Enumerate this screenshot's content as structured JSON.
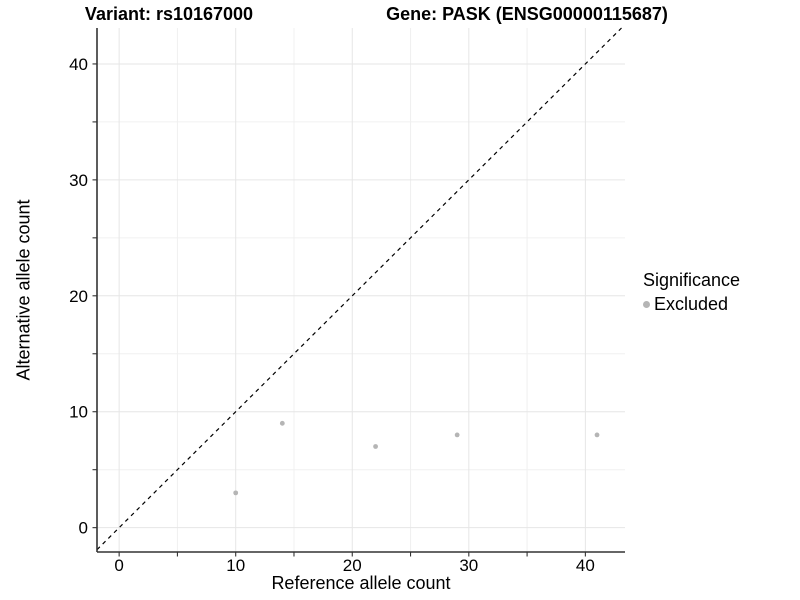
{
  "chart_data": {
    "type": "scatter",
    "title_left": "Variant: rs10167000",
    "title_right": "Gene: PASK (ENSG00000115687)",
    "xlabel": "Reference allele count",
    "ylabel": "Alternative allele count",
    "xlim": [
      -1.9,
      43.4
    ],
    "ylim": [
      -2.1,
      43.1
    ],
    "x_ticks_major": [
      0,
      10,
      20,
      30,
      40
    ],
    "x_ticks_minor": [
      5,
      15,
      25,
      35
    ],
    "y_ticks_major": [
      0,
      10,
      20,
      30,
      40
    ],
    "y_ticks_minor": [
      5,
      15,
      25,
      35
    ],
    "grid": "major+minor",
    "reference_line": {
      "type": "identity",
      "equation": "y = x",
      "style": "dashed",
      "color": "#000000"
    },
    "series": [
      {
        "name": "Excluded",
        "color": "#b5b5b5",
        "points": [
          {
            "x": 10,
            "y": 3
          },
          {
            "x": 14,
            "y": 9
          },
          {
            "x": 22,
            "y": 7
          },
          {
            "x": 29,
            "y": 8
          },
          {
            "x": 41,
            "y": 8
          }
        ]
      }
    ],
    "legend": {
      "title": "Significance",
      "position": "right",
      "items": [
        {
          "label": "Excluded",
          "color": "#b5b5b5",
          "marker": "circle"
        }
      ]
    },
    "colors": {
      "point": "#b5b5b5",
      "grid_major": "#e6e6e6",
      "grid_minor": "#f0f0f0",
      "axis": "#333333",
      "text": "#000000",
      "background": "#ffffff"
    }
  }
}
